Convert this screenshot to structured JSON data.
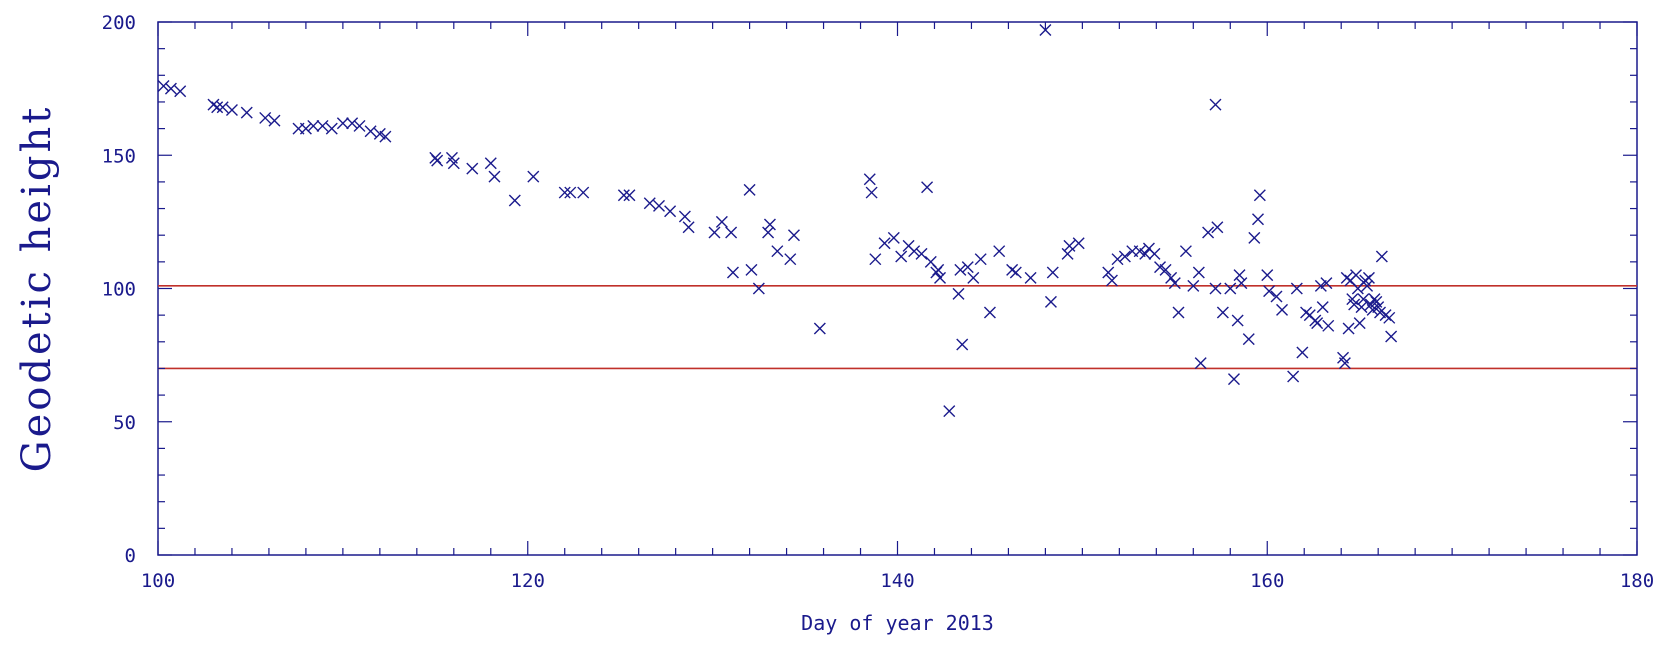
{
  "chart_data": {
    "type": "scatter",
    "title": "",
    "xlabel": "Day of year 2013",
    "ylabel": "Geodetic height",
    "xlim": [
      100,
      180
    ],
    "ylim": [
      0,
      200
    ],
    "x_ticks": [
      100,
      120,
      140,
      160,
      180
    ],
    "y_ticks": [
      0,
      50,
      100,
      150,
      200
    ],
    "grid": false,
    "marker": "x",
    "colors": {
      "axis": "#1a1a8c",
      "points": "#1a1a8c",
      "reference_lines": "#c0302a"
    },
    "reference_lines": [
      {
        "y": 101
      },
      {
        "y": 70
      }
    ],
    "series": [
      {
        "points": [
          [
            100.3,
            176
          ],
          [
            100.7,
            175
          ],
          [
            101.2,
            174
          ],
          [
            103.0,
            169
          ],
          [
            103.2,
            168
          ],
          [
            103.5,
            168
          ],
          [
            104.0,
            167
          ],
          [
            104.8,
            166
          ],
          [
            105.8,
            164
          ],
          [
            106.3,
            163
          ],
          [
            107.6,
            160
          ],
          [
            108.0,
            160
          ],
          [
            108.4,
            161
          ],
          [
            108.9,
            161
          ],
          [
            109.4,
            160
          ],
          [
            110.0,
            162
          ],
          [
            110.5,
            162
          ],
          [
            110.9,
            161
          ],
          [
            111.5,
            159
          ],
          [
            112.0,
            158
          ],
          [
            112.3,
            157
          ],
          [
            115.0,
            149
          ],
          [
            115.1,
            148
          ],
          [
            115.9,
            149
          ],
          [
            116.0,
            147
          ],
          [
            117.0,
            145
          ],
          [
            118.0,
            147
          ],
          [
            118.2,
            142
          ],
          [
            119.3,
            133
          ],
          [
            120.3,
            142
          ],
          [
            122.0,
            136
          ],
          [
            122.3,
            136
          ],
          [
            123.0,
            136
          ],
          [
            125.2,
            135
          ],
          [
            125.5,
            135
          ],
          [
            126.6,
            132
          ],
          [
            127.1,
            131
          ],
          [
            127.7,
            129
          ],
          [
            128.5,
            127
          ],
          [
            128.7,
            123
          ],
          [
            130.1,
            121
          ],
          [
            130.5,
            125
          ],
          [
            131.0,
            121
          ],
          [
            131.1,
            106
          ],
          [
            132.0,
            137
          ],
          [
            132.1,
            107
          ],
          [
            132.5,
            100
          ],
          [
            133.0,
            121
          ],
          [
            133.1,
            124
          ],
          [
            133.5,
            114
          ],
          [
            134.2,
            111
          ],
          [
            134.4,
            120
          ],
          [
            135.8,
            85
          ],
          [
            138.5,
            141
          ],
          [
            138.6,
            136
          ],
          [
            138.8,
            111
          ],
          [
            139.3,
            117
          ],
          [
            139.8,
            119
          ],
          [
            140.2,
            112
          ],
          [
            140.6,
            116
          ],
          [
            140.9,
            114
          ],
          [
            141.3,
            113
          ],
          [
            141.6,
            138
          ],
          [
            141.8,
            110
          ],
          [
            142.1,
            106
          ],
          [
            142.2,
            107
          ],
          [
            142.3,
            104
          ],
          [
            142.8,
            54
          ],
          [
            143.3,
            98
          ],
          [
            143.4,
            107
          ],
          [
            143.5,
            79
          ],
          [
            143.8,
            108
          ],
          [
            144.1,
            104
          ],
          [
            144.5,
            111
          ],
          [
            145.0,
            91
          ],
          [
            145.5,
            114
          ],
          [
            146.2,
            107
          ],
          [
            146.4,
            106
          ],
          [
            147.2,
            104
          ],
          [
            148.0,
            197
          ],
          [
            148.3,
            95
          ],
          [
            148.4,
            106
          ],
          [
            149.2,
            113
          ],
          [
            149.3,
            116
          ],
          [
            149.8,
            117
          ],
          [
            151.4,
            106
          ],
          [
            151.6,
            103
          ],
          [
            151.9,
            111
          ],
          [
            152.3,
            112
          ],
          [
            152.7,
            114
          ],
          [
            153.1,
            114
          ],
          [
            153.4,
            113
          ],
          [
            153.6,
            115
          ],
          [
            153.9,
            113
          ],
          [
            154.2,
            108
          ],
          [
            154.5,
            107
          ],
          [
            154.8,
            104
          ],
          [
            155.0,
            102
          ],
          [
            155.2,
            91
          ],
          [
            155.6,
            114
          ],
          [
            156.0,
            101
          ],
          [
            156.3,
            106
          ],
          [
            156.4,
            72
          ],
          [
            156.8,
            121
          ],
          [
            157.2,
            169
          ],
          [
            157.2,
            100
          ],
          [
            157.3,
            123
          ],
          [
            157.6,
            91
          ],
          [
            158.0,
            100
          ],
          [
            158.2,
            66
          ],
          [
            158.4,
            88
          ],
          [
            158.5,
            105
          ],
          [
            158.6,
            102
          ],
          [
            159.0,
            81
          ],
          [
            159.3,
            119
          ],
          [
            159.5,
            126
          ],
          [
            159.6,
            135
          ],
          [
            160.0,
            105
          ],
          [
            160.1,
            99
          ],
          [
            160.5,
            97
          ],
          [
            160.8,
            92
          ],
          [
            161.4,
            67
          ],
          [
            161.6,
            100
          ],
          [
            161.9,
            76
          ],
          [
            162.1,
            91
          ],
          [
            162.3,
            90
          ],
          [
            162.6,
            88
          ],
          [
            162.7,
            87
          ],
          [
            162.9,
            101
          ],
          [
            163.0,
            93
          ],
          [
            163.2,
            102
          ],
          [
            163.3,
            86
          ],
          [
            164.1,
            74
          ],
          [
            164.2,
            72
          ],
          [
            164.3,
            104
          ],
          [
            164.4,
            85
          ],
          [
            164.5,
            103
          ],
          [
            164.6,
            96
          ],
          [
            164.7,
            94
          ],
          [
            164.8,
            105
          ],
          [
            164.9,
            100
          ],
          [
            165.0,
            87
          ],
          [
            165.1,
            93
          ],
          [
            165.2,
            96
          ],
          [
            165.3,
            103
          ],
          [
            165.4,
            101
          ],
          [
            165.5,
            104
          ],
          [
            165.6,
            94
          ],
          [
            165.7,
            92
          ],
          [
            165.8,
            96
          ],
          [
            165.9,
            95
          ],
          [
            166.0,
            93
          ],
          [
            166.1,
            91
          ],
          [
            166.2,
            112
          ],
          [
            166.4,
            90
          ],
          [
            166.6,
            89
          ],
          [
            166.7,
            82
          ]
        ]
      }
    ]
  }
}
